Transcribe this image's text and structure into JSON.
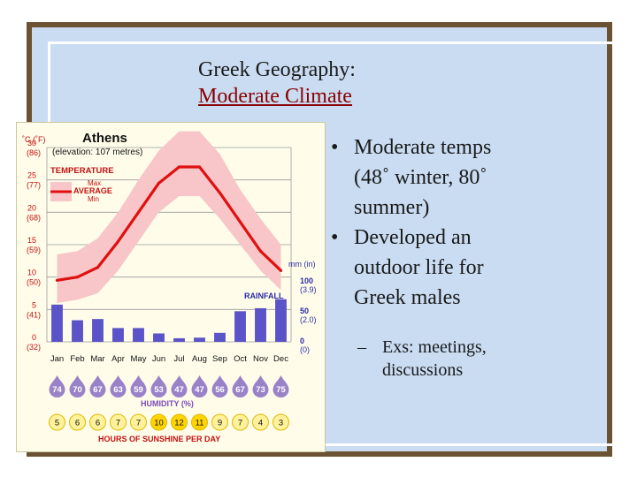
{
  "slide": {
    "title_line1": "Greek Geography:",
    "title_line2": "Moderate Climate",
    "bullets": [
      {
        "text_lines": [
          "Moderate temps",
          "(48˚ winter, 80˚",
          "summer)"
        ]
      },
      {
        "text_lines": [
          "Developed an",
          "outdoor life for",
          "Greek males"
        ]
      }
    ],
    "sub_bullet_lines": [
      "Exs: meetings,",
      "discussions"
    ],
    "bullet_glyph": "•",
    "sub_bullet_glyph": "–"
  },
  "chart_data": {
    "type": "line",
    "title": "Athens",
    "subtitle": "(elevation: 107 metres)",
    "months": [
      "Jan",
      "Feb",
      "Mar",
      "Apr",
      "May",
      "Jun",
      "Jul",
      "Aug",
      "Sep",
      "Oct",
      "Nov",
      "Dec"
    ],
    "temperature": {
      "label": "TEMPERATURE",
      "legend": [
        "Max",
        "AVERAGE",
        "Min"
      ],
      "unit_label": "˚C (˚F)",
      "ylim": [
        0,
        30
      ],
      "ticks_c": [
        "30",
        "25",
        "20",
        "15",
        "10",
        "5",
        "0"
      ],
      "ticks_f": [
        "(86)",
        "(77)",
        "(68)",
        "(59)",
        "(50)",
        "(41)",
        "(32)"
      ],
      "max": [
        13.5,
        14.0,
        16.0,
        20.0,
        25.0,
        29.5,
        32.5,
        32.5,
        29.0,
        23.5,
        19.0,
        15.0
      ],
      "average": [
        9.5,
        10.0,
        11.5,
        15.5,
        20.0,
        24.5,
        27.0,
        27.0,
        23.0,
        18.5,
        14.0,
        11.0
      ],
      "min": [
        6.0,
        6.5,
        7.5,
        11.0,
        15.5,
        20.0,
        22.5,
        22.5,
        19.0,
        15.0,
        11.0,
        8.0
      ]
    },
    "rainfall": {
      "label": "RAINFALL",
      "unit_label": "mm (in)",
      "ylim": [
        0,
        100
      ],
      "ticks_mm": [
        "100",
        "50",
        "0"
      ],
      "ticks_in": [
        "(3.9)",
        "(2.0)",
        "(0)"
      ],
      "values": [
        62,
        36,
        38,
        23,
        23,
        14,
        6,
        7,
        15,
        51,
        56,
        71
      ]
    },
    "humidity": {
      "label": "HUMIDITY (%)",
      "values": [
        "74",
        "70",
        "67",
        "63",
        "59",
        "53",
        "47",
        "47",
        "56",
        "67",
        "73",
        "75"
      ]
    },
    "sunshine": {
      "label": "HOURS OF SUNSHINE PER DAY",
      "values": [
        "5",
        "6",
        "6",
        "7",
        "7",
        "10",
        "12",
        "11",
        "9",
        "7",
        "4",
        "3"
      ]
    },
    "colors": {
      "line": "#e01010",
      "band": "#f8c6c8",
      "bars": "#5a54c8",
      "text_red": "#c41010",
      "text_blue": "#2c2aa8",
      "drop": "#9a82c8",
      "sun_bright": "#ffd400",
      "sun_pale": "#fff29a"
    }
  }
}
